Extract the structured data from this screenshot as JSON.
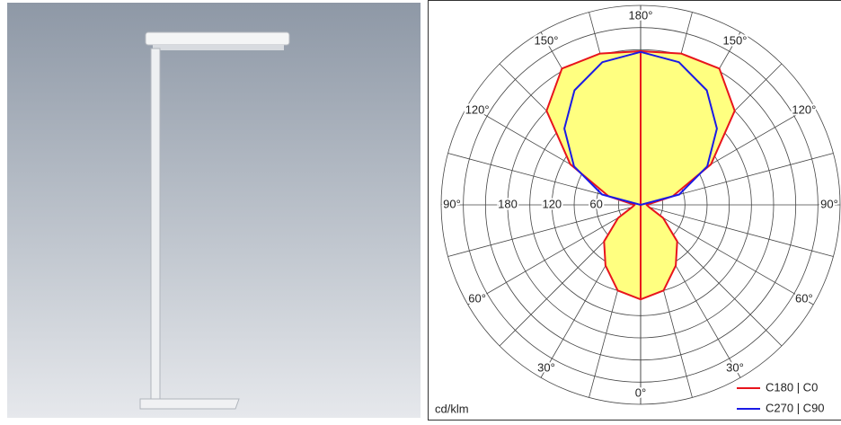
{
  "chart_data": {
    "type": "polar",
    "unit_label": "cd/klm",
    "angles": [
      0,
      15,
      30,
      45,
      60,
      75,
      90,
      105,
      120,
      135,
      150,
      165,
      180
    ],
    "series": [
      {
        "name": "C180 | C0",
        "color": "#e8141c",
        "fill": "#ffff80",
        "values": [
          128,
          120,
          95,
          70,
          35,
          12,
          8,
          45,
          110,
          180,
          213,
          212,
          208
        ]
      },
      {
        "name": "C270 | C90",
        "color": "#1a1ae6",
        "values": [
          null,
          null,
          null,
          null,
          null,
          null,
          0,
          54,
          104,
          146,
          179,
          200,
          207
        ]
      }
    ],
    "rlim": [
      0,
      270
    ],
    "rticks": [
      60,
      120,
      180
    ],
    "rgrid_step": 30,
    "angle_grid_step": 15,
    "angle_ticks": [
      {
        "value": 0,
        "label": "0°"
      },
      {
        "value": 30,
        "label": "30°"
      },
      {
        "value": 60,
        "label": "60°"
      },
      {
        "value": 90,
        "label": "90°"
      },
      {
        "value": 120,
        "label": "120°"
      },
      {
        "value": 150,
        "label": "150°"
      },
      {
        "value": 180,
        "label": "180°"
      }
    ]
  }
}
